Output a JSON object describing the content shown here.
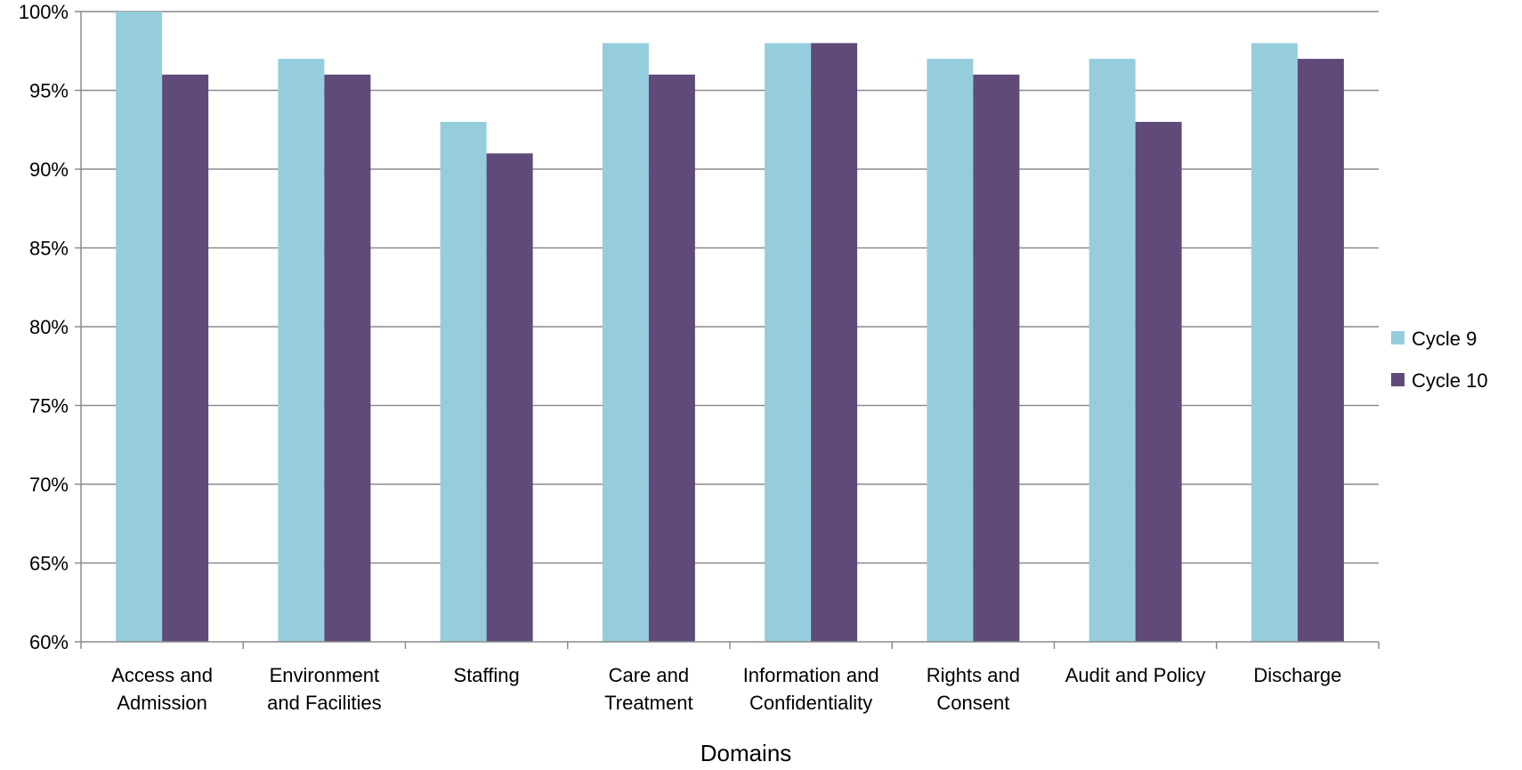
{
  "chart_data": {
    "type": "bar",
    "title": "",
    "xlabel": "Domains",
    "ylabel": "",
    "ylim": [
      60,
      100
    ],
    "yticks": [
      60,
      65,
      70,
      75,
      80,
      85,
      90,
      95,
      100
    ],
    "ytick_suffix": "%",
    "grid": true,
    "legend_position": "right",
    "categories": [
      [
        "Access and",
        "Admission"
      ],
      [
        "Environment",
        "and Facilities"
      ],
      [
        "Staffing"
      ],
      [
        "Care and",
        "Treatment"
      ],
      [
        "Information and",
        "Confidentiality"
      ],
      [
        "Rights and",
        "Consent"
      ],
      [
        "Audit and Policy"
      ],
      [
        "Discharge"
      ]
    ],
    "series": [
      {
        "name": "Cycle 9",
        "color": "#96cddd",
        "values": [
          100,
          97,
          93,
          98,
          98,
          97,
          97,
          98
        ]
      },
      {
        "name": "Cycle 10",
        "color": "#5f4a7a",
        "values": [
          96,
          96,
          91,
          96,
          98,
          96,
          93,
          97
        ]
      }
    ]
  }
}
